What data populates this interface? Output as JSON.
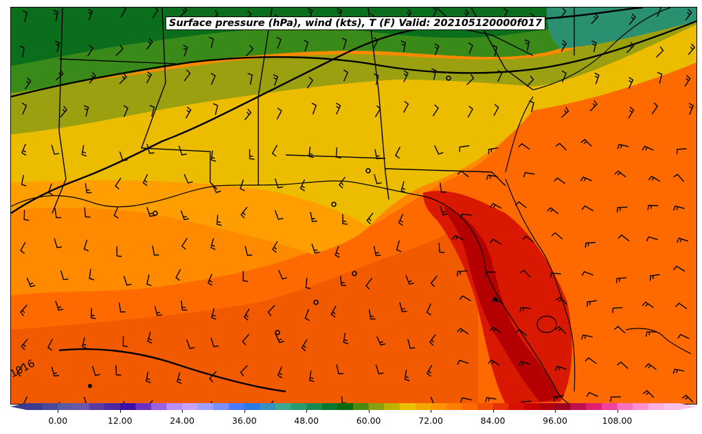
{
  "title": "Surface pressure (hPa), wind (kts), T (F) Valid: 202105120000f017",
  "isobar_label": "1016",
  "colorbar": {
    "min": -6,
    "max": 120,
    "step": 3,
    "ticks": [
      "0.00",
      "12.00",
      "24.00",
      "36.00",
      "48.00",
      "60.00",
      "72.00",
      "84.00",
      "96.00",
      "108.00"
    ],
    "colors": [
      "#3b3b8f",
      "#4a4a9a",
      "#5a5aa5",
      "#6a5aa8",
      "#5c3aa0",
      "#4a2aa0",
      "#3a10a8",
      "#6a30c0",
      "#9a60e0",
      "#b890f0",
      "#c8a0f8",
      "#a0a0ff",
      "#7890ff",
      "#4a7aff",
      "#2a7ae8",
      "#3a8fc0",
      "#3aa890",
      "#2a9a70",
      "#1a8a50",
      "#0a7a30",
      "#086a10",
      "#4a8a10",
      "#8aa010",
      "#c0b000",
      "#e8c000",
      "#f0a800",
      "#ff9400",
      "#ff8000",
      "#ff6a00",
      "#f05000",
      "#e83000",
      "#d81000",
      "#c80000",
      "#b00010",
      "#a00020",
      "#c01050",
      "#e02070",
      "#f040a0",
      "#f870c0",
      "#ff90d0",
      "#ffb0e0",
      "#ffc0e8"
    ]
  },
  "colors": {
    "dark_green": "#0a6e1c",
    "green": "#3a8a1a",
    "olive": "#8aa010",
    "yellow": "#e8c000",
    "orange_light": "#ff9a00",
    "orange": "#ff8a00",
    "orange_deep": "#ff6a00",
    "red_orange": "#f04800",
    "red": "#d01000",
    "dark_red": "#b00000",
    "teal": "#2a9070"
  }
}
